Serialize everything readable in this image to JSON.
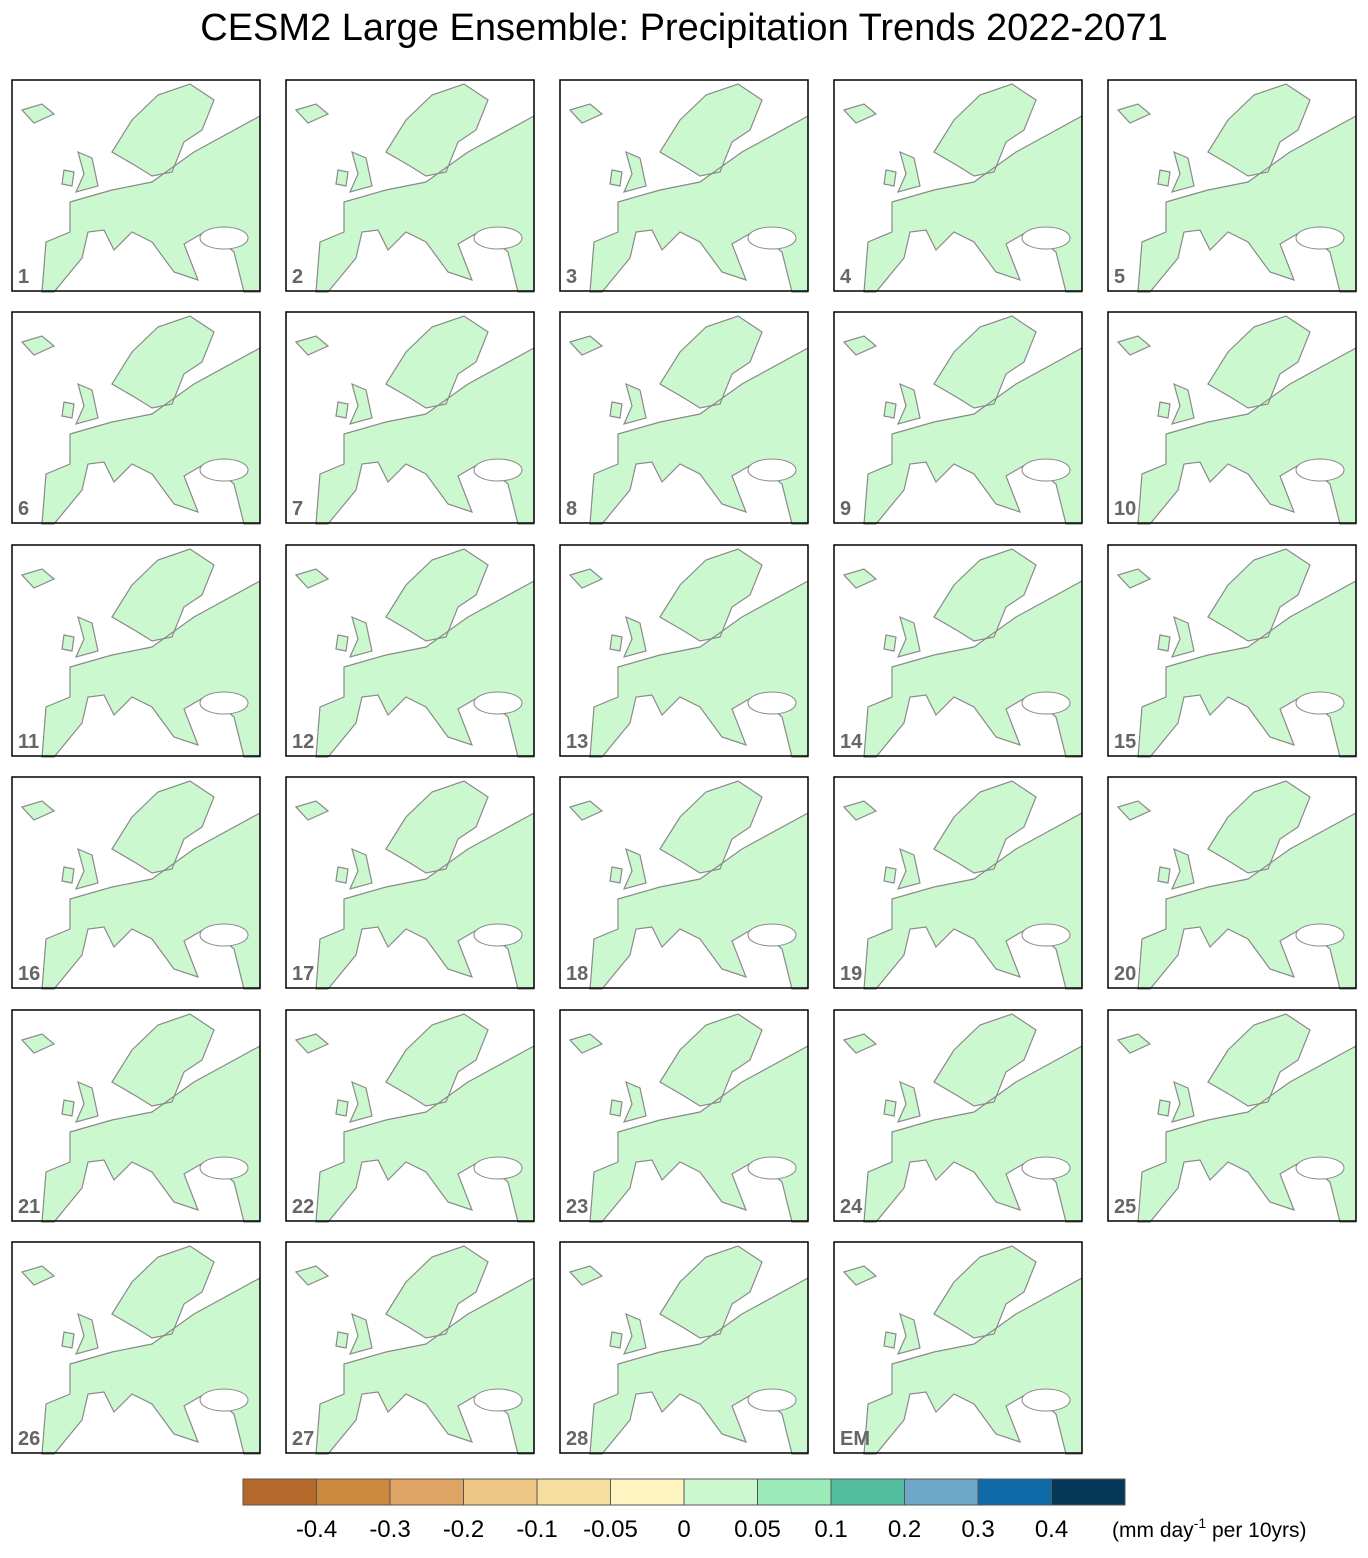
{
  "title": "CESM2 Large Ensemble: Precipitation Trends 2022-2071",
  "panels": [
    "1",
    "2",
    "3",
    "4",
    "5",
    "6",
    "7",
    "8",
    "9",
    "10",
    "11",
    "12",
    "13",
    "14",
    "15",
    "16",
    "17",
    "18",
    "19",
    "20",
    "21",
    "22",
    "23",
    "24",
    "25",
    "26",
    "27",
    "28",
    "EM"
  ],
  "colorbar": {
    "colors": [
      "#b5692a",
      "#cd8a3f",
      "#dea564",
      "#eec784",
      "#f4dfa0",
      "#fdf4c0",
      "#ccf8cf",
      "#9aebb8",
      "#53bf9e",
      "#6ea7c8",
      "#0f6aa8",
      "#033858"
    ],
    "levels": [
      -0.4,
      -0.3,
      -0.2,
      -0.1,
      -0.05,
      0,
      0.05,
      0.1,
      0.2,
      0.3,
      0.4
    ],
    "unit": {
      "before": "(mm day",
      "superscript": "-1",
      "after": " per 10yrs)"
    }
  }
}
